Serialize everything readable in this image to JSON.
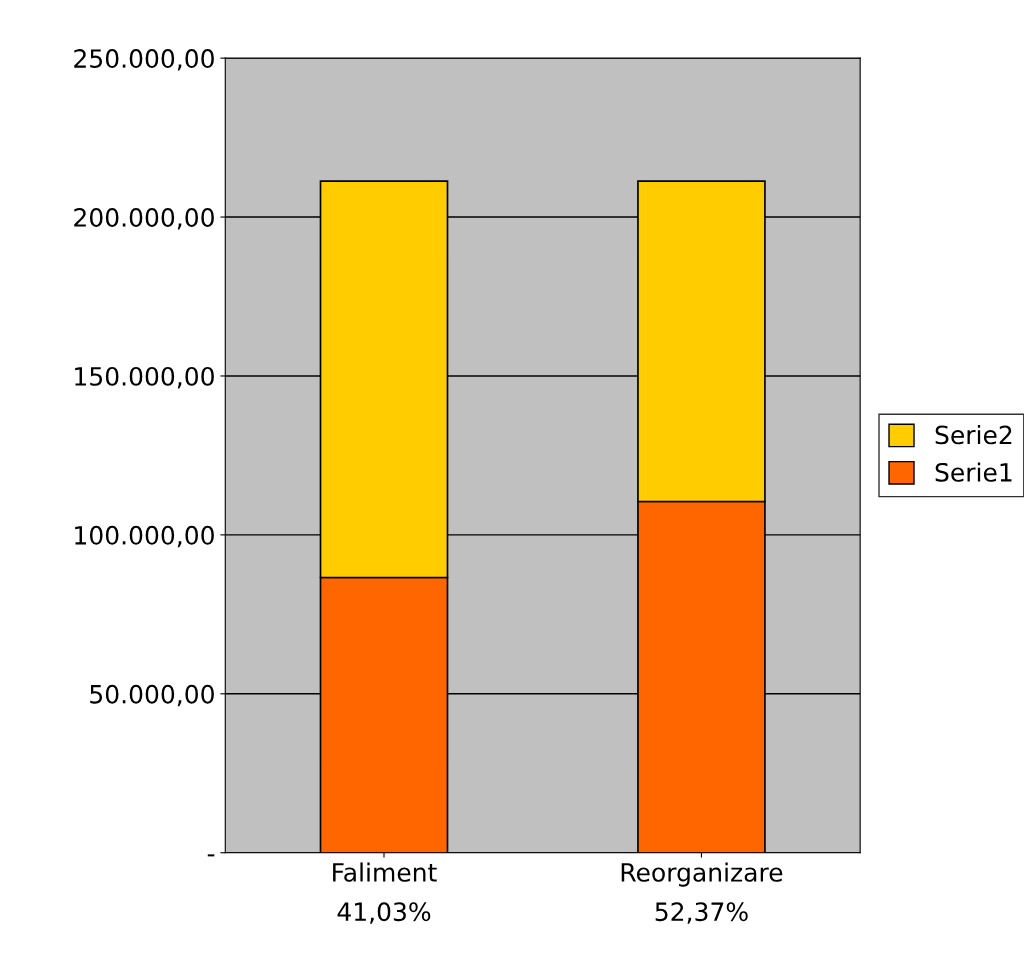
{
  "chart_data": {
    "type": "bar",
    "stacked": true,
    "categories": [
      "Faliment\n41,03%",
      "Reorganizare\n52,37%"
    ],
    "series": [
      {
        "name": "Serie1",
        "color": "#ff6600",
        "values": [
          86600,
          110500
        ]
      },
      {
        "name": "Serie2",
        "color": "#ffcc00",
        "values": [
          124700,
          100800
        ]
      }
    ],
    "ylim": [
      0,
      250000
    ],
    "yticks": [
      {
        "value": 0,
        "label": "-"
      },
      {
        "value": 50000,
        "label": "50.000,00"
      },
      {
        "value": 100000,
        "label": "100.000,00"
      },
      {
        "value": 150000,
        "label": "150.000,00"
      },
      {
        "value": 200000,
        "label": "200.000,00"
      },
      {
        "value": 250000,
        "label": "250.000,00"
      }
    ],
    "grid": "y",
    "legend": "right"
  }
}
